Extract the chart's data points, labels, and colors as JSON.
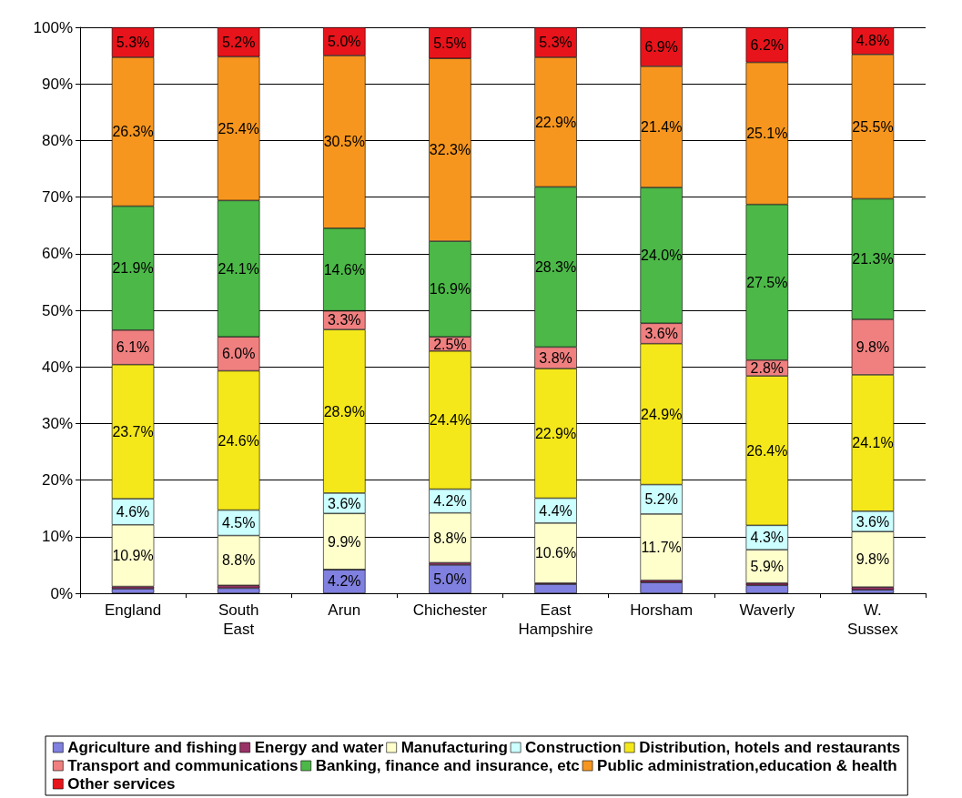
{
  "chart_data": {
    "type": "bar",
    "stacked": true,
    "categories": [
      "England",
      "South East",
      "Arun",
      "Chichester",
      "East Hampshire",
      "Horsham",
      "Waverly",
      "W. Sussex"
    ],
    "ylim": [
      0,
      100
    ],
    "yticks": [
      {
        "value": 0,
        "label": "0%"
      },
      {
        "value": 10,
        "label": "10%"
      },
      {
        "value": 20,
        "label": "20%"
      },
      {
        "value": 30,
        "label": "30%"
      },
      {
        "value": 40,
        "label": "40%"
      },
      {
        "value": 50,
        "label": "50%"
      },
      {
        "value": 60,
        "label": "60%"
      },
      {
        "value": 70,
        "label": "70%"
      },
      {
        "value": 80,
        "label": "80%"
      },
      {
        "value": 90,
        "label": "90%"
      },
      {
        "value": 100,
        "label": "100%"
      }
    ],
    "grid": "y",
    "legend": "bottom",
    "series": [
      {
        "name": "Agriculture and fishing",
        "color": "#8080e0",
        "values": [
          0.8,
          0.9,
          4.2,
          5.0,
          1.6,
          1.9,
          1.4,
          0.6
        ],
        "value_labels": [
          null,
          null,
          "4.2%",
          "5.0%",
          null,
          null,
          null,
          null
        ]
      },
      {
        "name": "Energy and water",
        "color": "#993366",
        "values": [
          0.4,
          0.5,
          0,
          0.4,
          0.2,
          0.4,
          0.4,
          0.5
        ],
        "value_labels": [
          null,
          null,
          null,
          null,
          null,
          null,
          null,
          null
        ]
      },
      {
        "name": "Manufacturing",
        "color": "#ffffcc",
        "values": [
          10.9,
          8.8,
          9.9,
          8.8,
          10.6,
          11.7,
          5.9,
          9.8
        ],
        "value_labels": [
          "10.9%",
          "8.8%",
          "9.9%",
          "8.8%",
          "10.6%",
          "11.7%",
          "5.9%",
          "9.8%"
        ]
      },
      {
        "name": "Construction",
        "color": "#ccffff",
        "values": [
          4.6,
          4.5,
          3.6,
          4.2,
          4.4,
          5.2,
          4.3,
          3.6
        ],
        "value_labels": [
          "4.6%",
          "4.5%",
          "3.6%",
          "4.2%",
          "4.4%",
          "5.2%",
          "4.3%",
          "3.6%"
        ]
      },
      {
        "name": "Distribution, hotels and restaurants",
        "color": "#f5e81a",
        "values": [
          23.7,
          24.6,
          28.9,
          24.4,
          22.9,
          24.9,
          26.4,
          24.1
        ],
        "value_labels": [
          "23.7%",
          "24.6%",
          "28.9%",
          "24.4%",
          "22.9%",
          "24.9%",
          "26.4%",
          "24.1%"
        ]
      },
      {
        "name": "Transport and communications",
        "color": "#f08080",
        "values": [
          6.1,
          6.0,
          3.3,
          2.5,
          3.8,
          3.6,
          2.8,
          9.8
        ],
        "value_labels": [
          "6.1%",
          "6.0%",
          "3.3%",
          "2.5%",
          "3.8%",
          "3.6%",
          "2.8%",
          "9.8%"
        ]
      },
      {
        "name": "Banking, finance and insurance, etc",
        "color": "#4cb848",
        "values": [
          21.9,
          24.1,
          14.6,
          16.9,
          28.3,
          24.0,
          27.5,
          21.3
        ],
        "value_labels": [
          "21.9%",
          "24.1%",
          "14.6%",
          "16.9%",
          "28.3%",
          "24.0%",
          "27.5%",
          "21.3%"
        ]
      },
      {
        "name": "Public administration,education & health",
        "color": "#f7961e",
        "values": [
          26.3,
          25.4,
          30.5,
          32.3,
          22.9,
          21.4,
          25.1,
          25.5
        ],
        "value_labels": [
          "26.3%",
          "25.4%",
          "30.5%",
          "32.3%",
          "22.9%",
          "21.4%",
          "25.1%",
          "25.5%"
        ]
      },
      {
        "name": "Other services",
        "color": "#e8141b",
        "values": [
          5.3,
          5.2,
          5.0,
          5.5,
          5.3,
          6.9,
          6.2,
          4.8
        ],
        "value_labels": [
          "5.3%",
          "5.2%",
          "5.0%",
          "5.5%",
          "5.3%",
          "6.9%",
          "6.2%",
          "4.8%"
        ]
      }
    ]
  }
}
